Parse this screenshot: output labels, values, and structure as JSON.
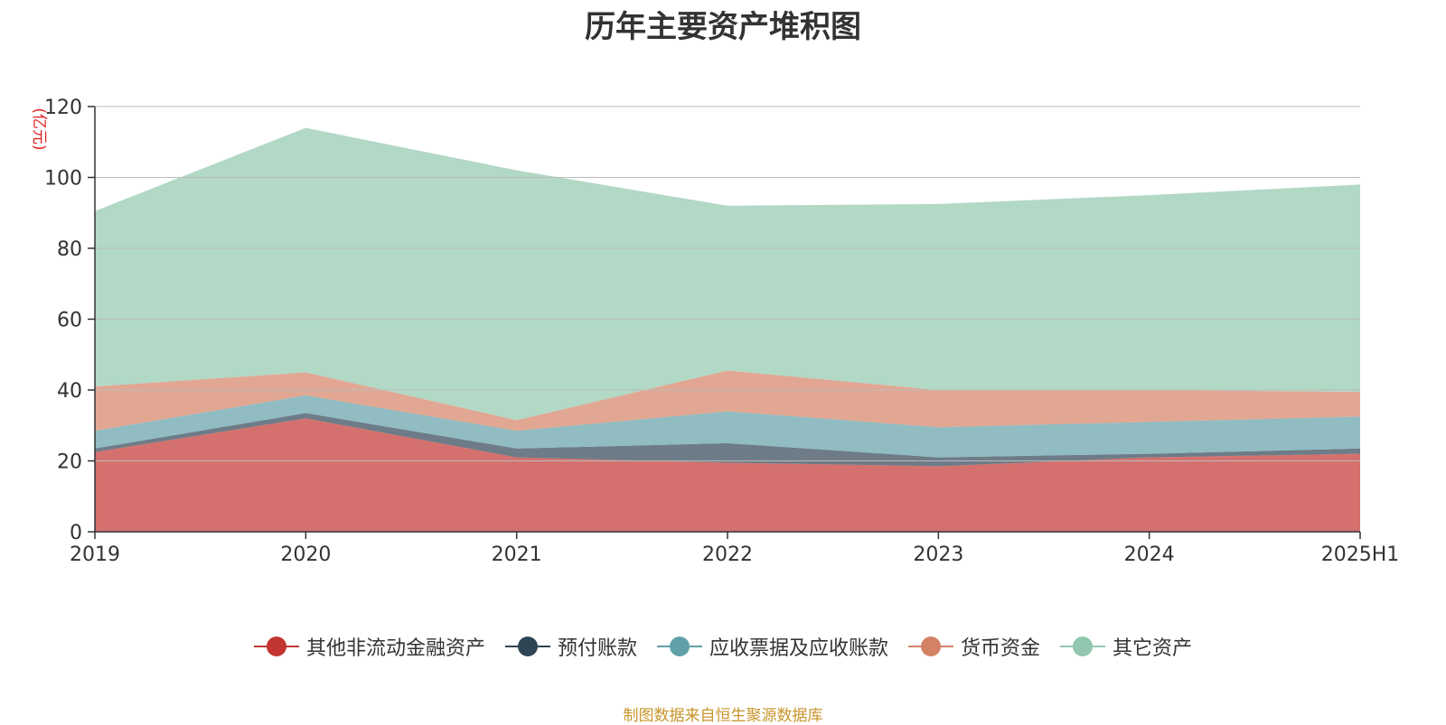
{
  "chart_data": {
    "type": "area",
    "stacked": true,
    "title": "历年主要资产堆积图",
    "ylabel": "(亿元)",
    "xlabel": "",
    "categories": [
      "2019",
      "2020",
      "2021",
      "2022",
      "2023",
      "2024",
      "2025H1"
    ],
    "yticks": [
      0,
      20,
      40,
      60,
      80,
      100,
      120
    ],
    "ylim": [
      0,
      120
    ],
    "grid": true,
    "legend_position": "bottom",
    "series": [
      {
        "name": "其他非流动金融资产",
        "color": "#c23531",
        "values": [
          22.5,
          32,
          21,
          19.5,
          18.5,
          21,
          22
        ]
      },
      {
        "name": "预付账款",
        "color": "#2f4554",
        "values": [
          1,
          1.5,
          2.5,
          5.5,
          2.5,
          1,
          1.5
        ]
      },
      {
        "name": "应收票据及应收账款",
        "color": "#61a0a8",
        "values": [
          5,
          5,
          5,
          9,
          8.5,
          9,
          9
        ]
      },
      {
        "name": "货币资金",
        "color": "#d48265",
        "values": [
          12.5,
          6.5,
          3,
          11.5,
          10.5,
          9,
          7
        ]
      },
      {
        "name": "其它资产",
        "color": "#91c7ae",
        "values": [
          49.5,
          69,
          70.5,
          46.5,
          52.5,
          55,
          58.5
        ]
      }
    ],
    "source": "制图数据来自恒生聚源数据库"
  }
}
